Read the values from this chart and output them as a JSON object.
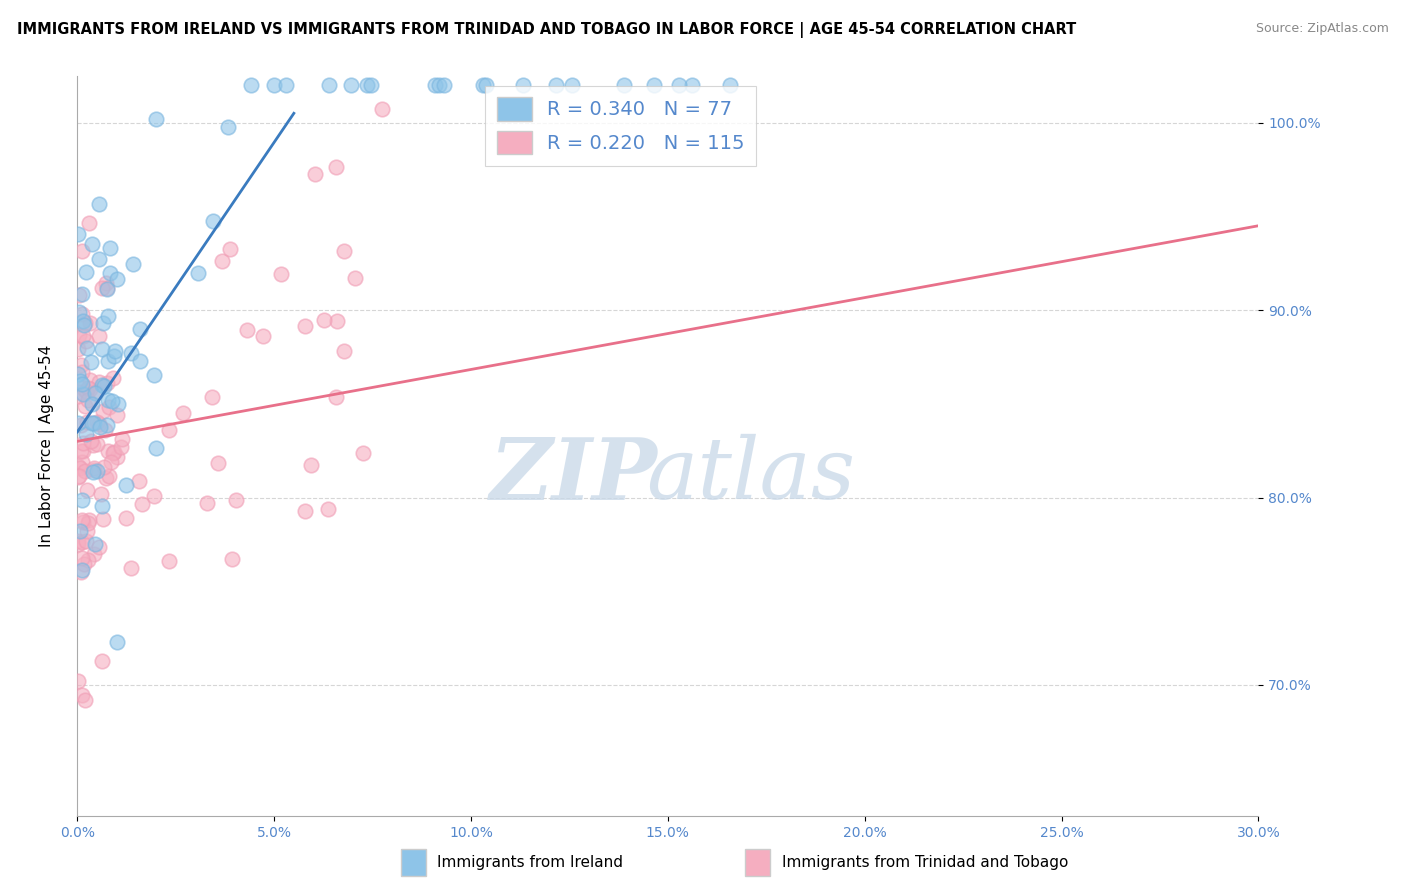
{
  "title": "IMMIGRANTS FROM IRELAND VS IMMIGRANTS FROM TRINIDAD AND TOBAGO IN LABOR FORCE | AGE 45-54 CORRELATION CHART",
  "source": "Source: ZipAtlas.com",
  "ylabel": "In Labor Force | Age 45-54",
  "xlim": [
    0.0,
    30.0
  ],
  "ylim": [
    63.0,
    102.5
  ],
  "yticks": [
    70.0,
    80.0,
    90.0,
    100.0
  ],
  "xticks": [
    0.0,
    5.0,
    10.0,
    15.0,
    20.0,
    25.0,
    30.0
  ],
  "ireland_color": "#8ec4e8",
  "ireland_edge": "#7ab5df",
  "tt_color": "#f5aec0",
  "tt_edge": "#f09db5",
  "ireland_R": 0.34,
  "ireland_N": 77,
  "tt_R": 0.22,
  "tt_N": 115,
  "ireland_line_color": "#3a7bbf",
  "tt_line_color": "#e8708a",
  "watermark_zip": "ZIP",
  "watermark_atlas": "atlas",
  "background_color": "#ffffff",
  "grid_color": "#cccccc",
  "tick_color": "#5588cc",
  "legend_edge": "#cccccc"
}
